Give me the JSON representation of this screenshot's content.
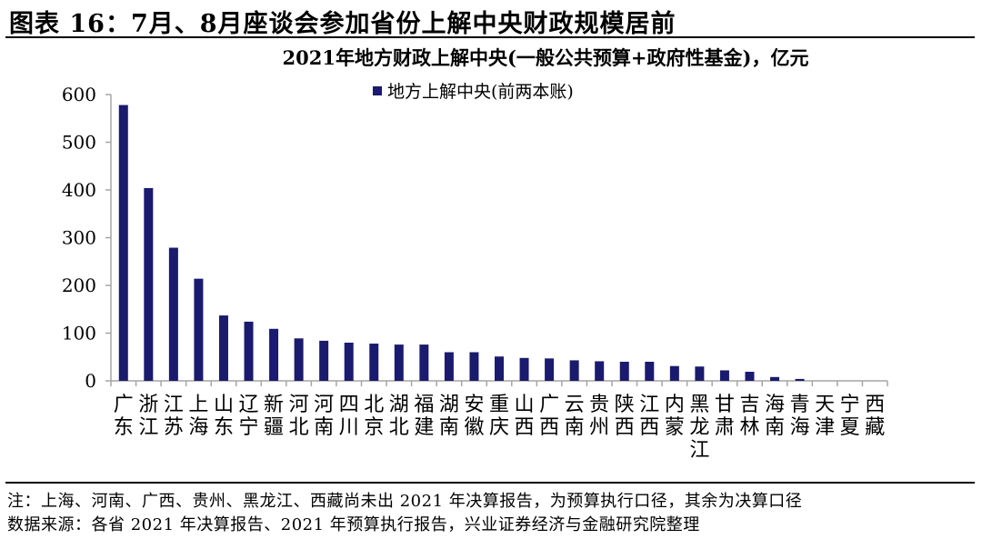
{
  "figure_title": "图表 16：7月、8月座谈会参加省份上解中央财政规模居前",
  "note": "注：上海、河南、广西、贵州、黑龙江、西藏尚未出 2021 年决算报告，为预算执行口径，其余为决算口径",
  "source": "数据来源：各省 2021 年决算报告、2021 年预算执行报告，兴业证券经济与金融研究院整理",
  "colors": {
    "bar": "#1a1a6e",
    "axis": "#a6a6a6"
  },
  "chart_data": {
    "type": "bar",
    "title": "2021年地方财政上解中央(一般公共预算+政府性基金)，亿元",
    "legend_position": "top-center",
    "grid": false,
    "ylim": [
      0,
      600
    ],
    "yticks": [
      0,
      100,
      200,
      300,
      400,
      500,
      600
    ],
    "categories": [
      "广东",
      "浙江",
      "江苏",
      "上海",
      "山东",
      "辽宁",
      "新疆",
      "河北",
      "河南",
      "四川",
      "北京",
      "湖北",
      "福建",
      "湖南",
      "安徽",
      "重庆",
      "山西",
      "广西",
      "云南",
      "贵州",
      "陕西",
      "江西",
      "内蒙",
      "黑龙江",
      "甘肃",
      "吉林",
      "海南",
      "青海",
      "天津",
      "宁夏",
      "西藏"
    ],
    "series": [
      {
        "name": "地方上解中央(前两本账)",
        "values": [
          578,
          404,
          279,
          214,
          137,
          124,
          109,
          89,
          84,
          80,
          78,
          76,
          76,
          60,
          60,
          51,
          48,
          47,
          43,
          41,
          40,
          40,
          31,
          30,
          22,
          19,
          8,
          4,
          0,
          0,
          0
        ]
      }
    ]
  }
}
